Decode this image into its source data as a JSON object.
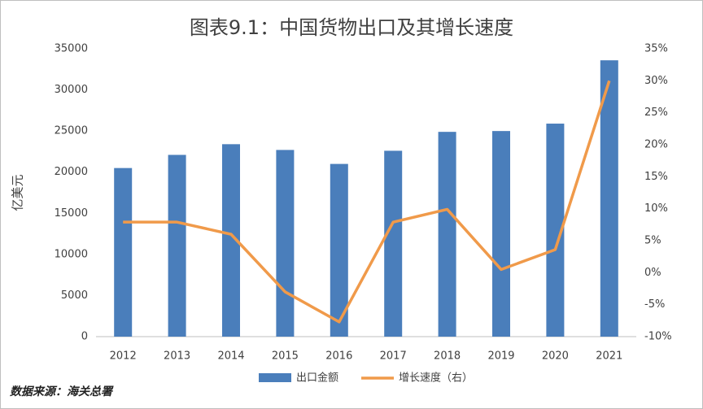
{
  "chart_data": {
    "type": "bar-line",
    "title": "图表9.1：中国货物出口及其增长速度",
    "y_label": "亿美元",
    "source": "数据来源：海关总署",
    "categories": [
      "2012",
      "2013",
      "2014",
      "2015",
      "2016",
      "2017",
      "2018",
      "2019",
      "2020",
      "2021"
    ],
    "series": [
      {
        "name": "出口金额",
        "color": "#4a7ebb",
        "kind": "bar",
        "values": [
          20500,
          22100,
          23400,
          22700,
          21000,
          22600,
          24900,
          25000,
          25900,
          33600
        ]
      },
      {
        "name": "增长速度（右）",
        "color": "#f09a4a",
        "kind": "line",
        "axis": "y2",
        "values": [
          7.9,
          7.9,
          6.0,
          -3.0,
          -7.7,
          7.9,
          9.9,
          0.5,
          3.6,
          30
        ]
      }
    ],
    "ylim": [
      0,
      35000
    ],
    "yticks": [
      0,
      5000,
      10000,
      15000,
      20000,
      25000,
      30000,
      35000
    ],
    "y2lim": [
      -10,
      35
    ],
    "y2ticks": [
      {
        "value": -10,
        "label": "-10%"
      },
      {
        "value": -5,
        "label": "-5%"
      },
      {
        "value": 0,
        "label": "0%"
      },
      {
        "value": 5,
        "label": "5%"
      },
      {
        "value": 10,
        "label": "10%"
      },
      {
        "value": 15,
        "label": "15%"
      },
      {
        "value": 20,
        "label": "20%"
      },
      {
        "value": 25,
        "label": "25%"
      },
      {
        "value": 30,
        "label": "30%"
      },
      {
        "value": 35,
        "label": "35%"
      }
    ],
    "grid": false,
    "legend": "bottom"
  }
}
